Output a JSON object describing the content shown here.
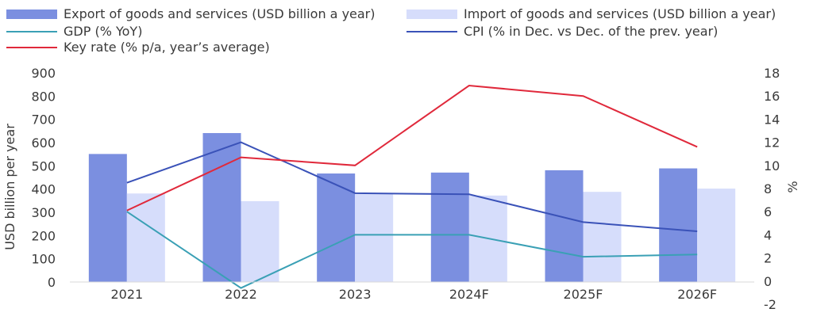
{
  "chart_data": {
    "type": "bar",
    "categories": [
      "2021",
      "2022",
      "2023",
      "2024F",
      "2025F",
      "2026F"
    ],
    "series": [
      {
        "name": "Export of goods and services (USD billion a year)",
        "kind": "bar",
        "axis": "left",
        "color": "#7b8fe0",
        "values": [
          551,
          641,
          467,
          471,
          481,
          489
        ]
      },
      {
        "name": "Import of goods and services (USD billion a year)",
        "kind": "bar",
        "axis": "left",
        "color": "#d6ddfb",
        "values": [
          381,
          348,
          378,
          372,
          388,
          402
        ]
      },
      {
        "name": "GDP (% YoY)",
        "kind": "line",
        "axis": "right",
        "color": "#3aa0b5",
        "values": [
          6.0,
          -0.6,
          4.0,
          4.0,
          2.1,
          2.3
        ]
      },
      {
        "name": "CPI (% in Dec. vs Dec. of the prev. year)",
        "kind": "line",
        "axis": "right",
        "color": "#3a52b8",
        "values": [
          8.5,
          12.0,
          7.6,
          7.5,
          5.1,
          4.3
        ]
      },
      {
        "name": "Key rate (% p/a, year's average)",
        "kind": "line",
        "axis": "right",
        "color": "#e0293b",
        "values": [
          6.1,
          10.7,
          10.0,
          16.9,
          16.0,
          11.6
        ]
      }
    ],
    "yleft": {
      "label": "USD billion per year",
      "min": 0,
      "max": 900,
      "ticks": [
        "0",
        "100",
        "200",
        "300",
        "400",
        "500",
        "600",
        "700",
        "800",
        "900"
      ]
    },
    "yright": {
      "label": "%",
      "min": -2,
      "max": 18,
      "ticks": [
        "-2",
        "0",
        "2",
        "4",
        "6",
        "8",
        "10",
        "12",
        "14",
        "16",
        "18"
      ]
    },
    "legend_position": "top",
    "grid": false
  },
  "legend": [
    {
      "label": "Export of goods and services (USD billion a year)",
      "style": "box",
      "color": "#7b8fe0"
    },
    {
      "label": "Import of goods and services (USD billion a year)",
      "style": "box",
      "color": "#d6ddfb"
    },
    {
      "label": "GDP (% YoY)",
      "style": "line",
      "color": "#3aa0b5"
    },
    {
      "label": "CPI (% in Dec. vs Dec. of the prev. year)",
      "style": "line",
      "color": "#3a52b8"
    },
    {
      "label": "Key rate (% p/a, year’s average)",
      "style": "line",
      "color": "#e0293b"
    }
  ]
}
